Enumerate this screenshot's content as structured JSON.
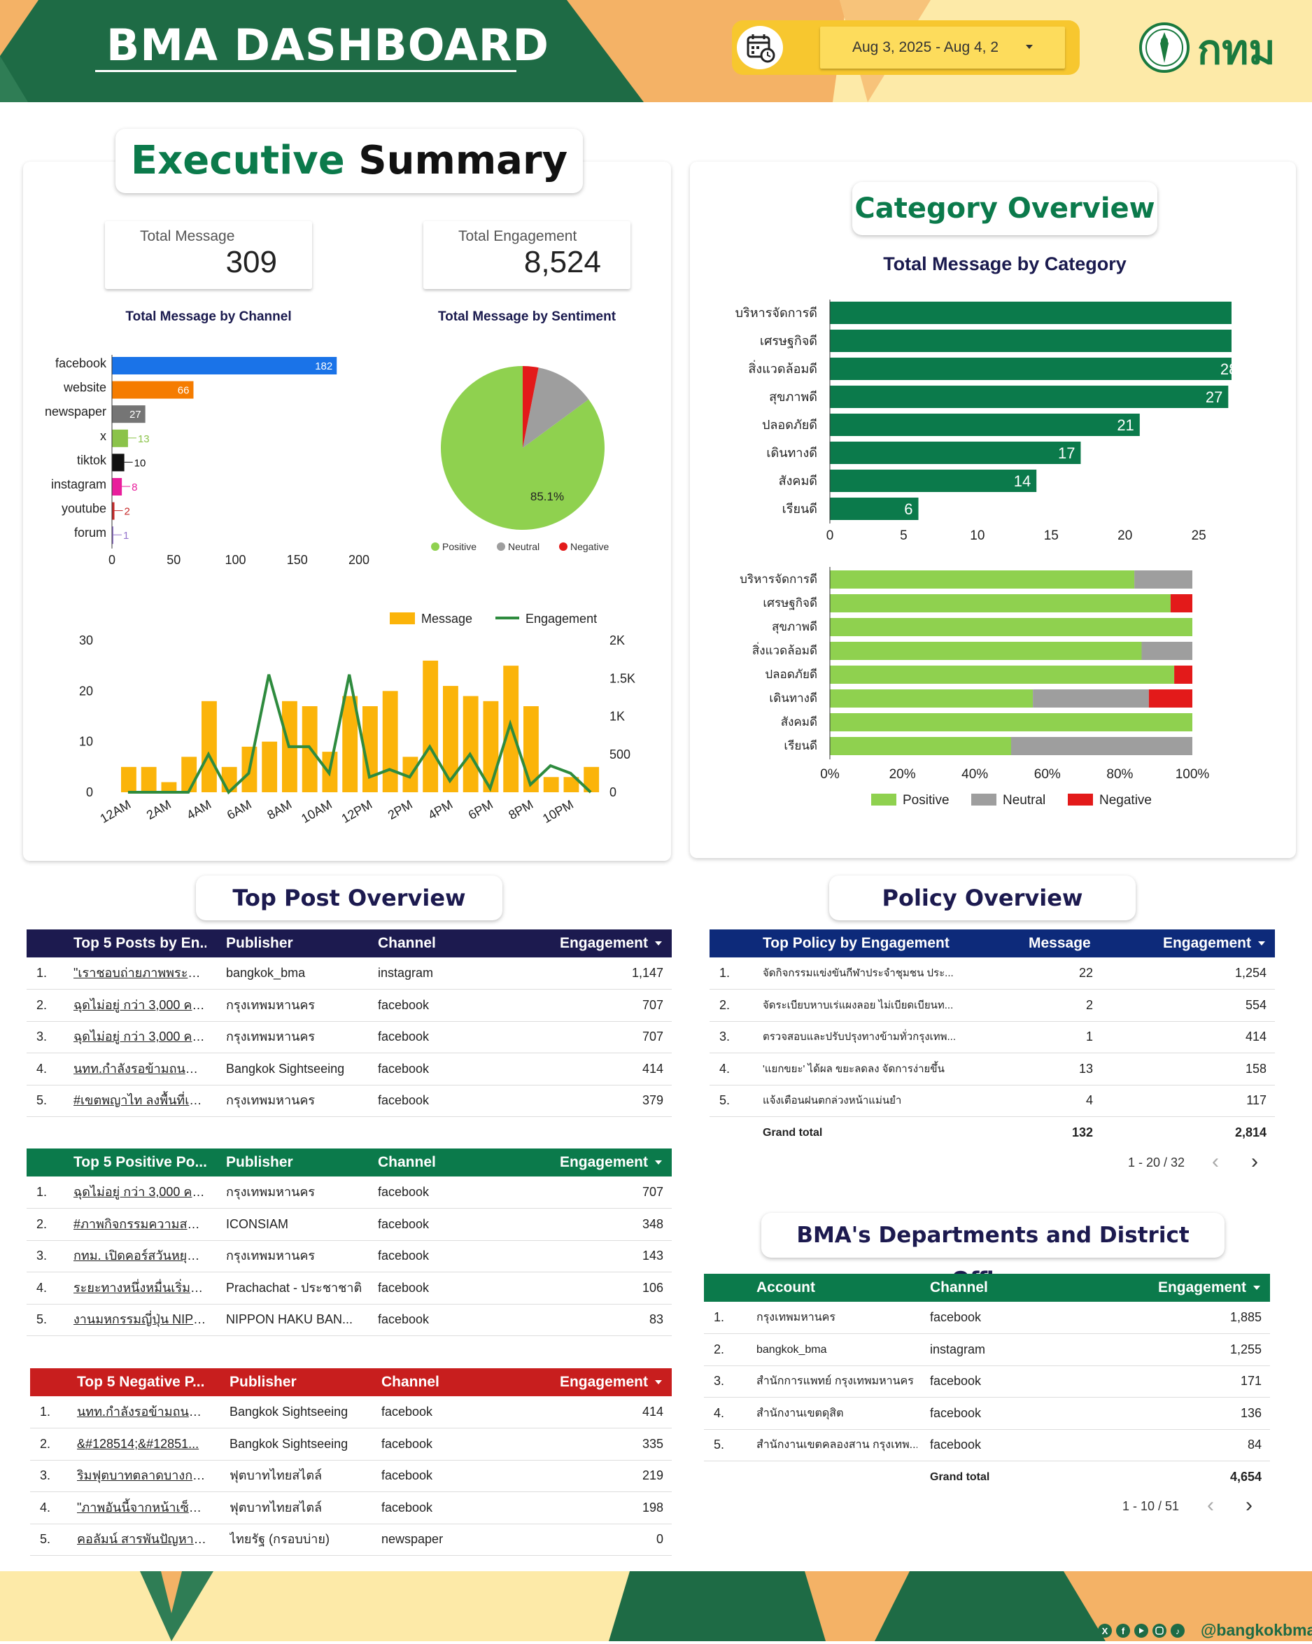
{
  "header": {
    "title": "BMA DASHBOARD",
    "date_range": "Aug 3, 2025 - Aug 4, 2",
    "logo_text": "กทม",
    "calendar_icon": "calendar-clock-icon",
    "dropdown_icon": "caret-down-icon"
  },
  "colors": {
    "dark_green": "#1e6b45",
    "brand_green": "#0b7a4b",
    "orange": "#f4b266",
    "yellow": "#f7c72f",
    "navy": "#1c1a4f",
    "red": "#c81e1e",
    "positive": "#8fd14f",
    "neutral": "#9e9e9e",
    "negative": "#e31a1a"
  },
  "executive": {
    "title_part1": "Executive",
    "title_part2": "Summary",
    "total_message_label": "Total Message",
    "total_message_value": "309",
    "total_engagement_label": "Total Engagement",
    "total_engagement_value": "8,524",
    "channel_title": "Total Message by Channel",
    "sentiment_title": "Total Message by Sentiment"
  },
  "category": {
    "title": "Category Overview",
    "chart_title": "Total Message by Category"
  },
  "top_post": {
    "title": "Top Post Overview",
    "engagement_table": {
      "headers": [
        "Top 5 Posts by En...",
        "Publisher",
        "Channel",
        "Engagement"
      ],
      "rows": [
        {
          "n": "1.",
          "post": "\"เราชอบถ่ายภาพพระราชินี...",
          "publisher": "bangkok_bma",
          "channel": "instagram",
          "engagement": "1,147"
        },
        {
          "n": "2.",
          "post": "ฉุดไม่อยู่ กว่า 3,000 คน ...",
          "publisher": "กรุงเทพมหานคร",
          "channel": "facebook",
          "engagement": "707"
        },
        {
          "n": "3.",
          "post": "ฉุดไม่อยู่ กว่า 3,000 คน ...",
          "publisher": "กรุงเทพมหานคร",
          "channel": "facebook",
          "engagement": "707"
        },
        {
          "n": "4.",
          "post": "นทท.กำลังรอข้ามถนนจนลั...",
          "publisher": "Bangkok Sightseeing",
          "channel": "facebook",
          "engagement": "414"
        },
        {
          "n": "5.",
          "post": "#เขตพญาไท ลงพื้นที่เก็บก...",
          "publisher": "กรุงเทพมหานคร",
          "channel": "facebook",
          "engagement": "379"
        }
      ]
    },
    "positive_table": {
      "headers": [
        "Top 5 Positive Po...",
        "Publisher",
        "Channel",
        "Engagement"
      ],
      "rows": [
        {
          "n": "1.",
          "post": "ฉุดไม่อยู่ กว่า 3,000 คน ...",
          "publisher": "กรุงเทพมหานคร",
          "channel": "facebook",
          "engagement": "707"
        },
        {
          "n": "2.",
          "post": "#ภาพกิจกรรมความสนุกเห็...",
          "publisher": "ICONSIAM",
          "channel": "facebook",
          "engagement": "348"
        },
        {
          "n": "3.",
          "post": "กทม. เปิดคอร์สวันหยุด ติว...",
          "publisher": "กรุงเทพมหานคร",
          "channel": "facebook",
          "engagement": "143"
        },
        {
          "n": "4.",
          "post": "ระยะทางหนึ่งหมื่นเริ่มต้นที่ก้...",
          "publisher": "Prachachat - ประชาชาติ",
          "channel": "facebook",
          "engagement": "106"
        },
        {
          "n": "5.",
          "post": "งานมหกรรมญี่ปุ่น NIPP...",
          "publisher": "NIPPON HAKU BAN...",
          "channel": "facebook",
          "engagement": "83"
        }
      ]
    },
    "negative_table": {
      "headers": [
        "Top 5 Negative P...",
        "Publisher",
        "Channel",
        "Engagement"
      ],
      "rows": [
        {
          "n": "1.",
          "post": "นทท.กำลังรอข้ามถนนจนลั...",
          "publisher": "Bangkok Sightseeing",
          "channel": "facebook",
          "engagement": "414"
        },
        {
          "n": "2.",
          "post": "&#128514;&#12851...",
          "publisher": "Bangkok Sightseeing",
          "channel": "facebook",
          "engagement": "335"
        },
        {
          "n": "3.",
          "post": "ริมฟุตบาทตลาดบางกะปิ ล...",
          "publisher": "ฟุตบาทไทยสไตล์",
          "channel": "facebook",
          "engagement": "219"
        },
        {
          "n": "4.",
          "post": "\"ภาพอันนี้จากหน้าเซ็นทรัล...",
          "publisher": "ฟุตบาทไทยสไตล์",
          "channel": "facebook",
          "engagement": "198"
        },
        {
          "n": "5.",
          "post": "คอลัมน์ สารพันปัญหาสาระ...",
          "publisher": "ไทยรัฐ (กรอบบ่าย)",
          "channel": "newspaper",
          "engagement": "0"
        }
      ]
    }
  },
  "policy": {
    "title": "Policy Overview",
    "headers": [
      "Top Policy by Engagement",
      "Message",
      "Engagement"
    ],
    "rows": [
      {
        "n": "1.",
        "policy": "จัดกิจกรรมแข่งขันกีฬาประจำชุมชน ประ...",
        "message": "22",
        "engagement": "1,254"
      },
      {
        "n": "2.",
        "policy": "จัดระเบียบหาบเร่แผงลอย ไม่เบียดเบียนท...",
        "message": "2",
        "engagement": "554"
      },
      {
        "n": "3.",
        "policy": "ตรวจสอบและปรับปรุงทางข้ามทั่วกรุงเทพ...",
        "message": "1",
        "engagement": "414"
      },
      {
        "n": "4.",
        "policy": "'แยกขยะ' ได้ผล ขยะลดลง จัดการง่ายขึ้น",
        "message": "13",
        "engagement": "158"
      },
      {
        "n": "5.",
        "policy": "แจ้งเตือนฝนตกล่วงหน้าแม่นยำ",
        "message": "4",
        "engagement": "117"
      }
    ],
    "grand_total_label": "Grand total",
    "grand_total_message": "132",
    "grand_total_engagement": "2,814",
    "pager": "1 - 20 / 32"
  },
  "departments": {
    "title": "BMA's Departments and District Offices",
    "headers": [
      "Account",
      "Channel",
      "Engagement"
    ],
    "rows": [
      {
        "n": "1.",
        "account": "กรุงเทพมหานคร",
        "channel": "facebook",
        "engagement": "1,885"
      },
      {
        "n": "2.",
        "account": "bangkok_bma",
        "channel": "instagram",
        "engagement": "1,255"
      },
      {
        "n": "3.",
        "account": "สำนักการแพทย์ กรุงเทพมหานคร",
        "channel": "facebook",
        "engagement": "171"
      },
      {
        "n": "4.",
        "account": "สำนักงานเขตดุสิต",
        "channel": "facebook",
        "engagement": "136"
      },
      {
        "n": "5.",
        "account": "สำนักงานเขตคลองสาน กรุงเทพ...",
        "channel": "facebook",
        "engagement": "84"
      }
    ],
    "grand_total_label": "Grand total",
    "grand_total_engagement": "4,654",
    "pager": "1 - 10 / 51"
  },
  "footer": {
    "handle": "@bangkokbma",
    "icons": [
      "x-icon",
      "facebook-icon",
      "youtube-icon",
      "instagram-icon",
      "tiktok-icon"
    ]
  },
  "chart_data": [
    {
      "id": "channel",
      "type": "bar",
      "orientation": "horizontal",
      "title": "Total Message by Channel",
      "categories": [
        "facebook",
        "website",
        "newspaper",
        "x",
        "tiktok",
        "instagram",
        "youtube",
        "forum"
      ],
      "values": [
        182,
        66,
        27,
        13,
        10,
        8,
        2,
        1
      ],
      "colors": [
        "#1a73e8",
        "#f57c00",
        "#757575",
        "#8bc34a",
        "#111111",
        "#e91e9c",
        "#c62828",
        "#9575cd"
      ],
      "xlim": [
        0,
        200
      ],
      "xticks": [
        "0",
        "50",
        "100",
        "150",
        "200"
      ]
    },
    {
      "id": "sentiment",
      "type": "pie",
      "title": "Total Message by Sentiment",
      "labels": [
        "Positive",
        "Neutral",
        "Negative"
      ],
      "values": [
        85.1,
        11.8,
        3.1
      ],
      "colors": [
        "#8fd14f",
        "#9e9e9e",
        "#e31a1a"
      ],
      "data_label": "85.1%",
      "legend": "bottom"
    },
    {
      "id": "hourly",
      "type": "bar",
      "combo": "bar+line",
      "x": [
        "12AM",
        "1AM",
        "2AM",
        "3AM",
        "4AM",
        "5AM",
        "6AM",
        "7AM",
        "8AM",
        "9AM",
        "10AM",
        "11AM",
        "12PM",
        "1PM",
        "2PM",
        "3PM",
        "4PM",
        "5PM",
        "6PM",
        "7PM",
        "8PM",
        "9PM",
        "10PM",
        "11PM"
      ],
      "xtick_labels": [
        "12AM",
        "2AM",
        "4AM",
        "6AM",
        "8AM",
        "10AM",
        "12PM",
        "2PM",
        "4PM",
        "6PM",
        "8PM",
        "10PM"
      ],
      "series": [
        {
          "name": "Message",
          "type": "bar",
          "color": "#fbb40a",
          "axis": "left",
          "values": [
            5,
            5,
            2,
            7,
            18,
            5,
            9,
            10,
            18,
            17,
            8,
            19,
            17,
            20,
            7,
            26,
            21,
            19,
            18,
            25,
            17,
            3,
            3,
            5
          ]
        },
        {
          "name": "Engagement",
          "type": "line",
          "color": "#2e8b3e",
          "axis": "right",
          "values": [
            0,
            0,
            0,
            0,
            500,
            0,
            250,
            1550,
            600,
            600,
            250,
            1550,
            200,
            300,
            200,
            600,
            150,
            500,
            50,
            900,
            100,
            350,
            250,
            0
          ]
        }
      ],
      "ylim_left": [
        0,
        30
      ],
      "yticks_left": [
        "0",
        "10",
        "20",
        "30"
      ],
      "ylim_right": [
        0,
        2000
      ],
      "yticks_right": [
        "0",
        "500",
        "1K",
        "1.5K",
        "2K"
      ],
      "legend": "top-right"
    },
    {
      "id": "category",
      "type": "bar",
      "orientation": "horizontal",
      "title": "Total Message by Category",
      "categories": [
        "บริหารจัดการดี",
        "เศรษฐกิจดี",
        "สิ่งแวดล้อมดี",
        "สุขภาพดี",
        "ปลอดภัยดี",
        "เดินทางดี",
        "สังคมดี",
        "เรียนดี"
      ],
      "values": [
        31,
        30,
        28,
        27,
        21,
        17,
        14,
        6
      ],
      "color": "#0b7a4b",
      "xlim": [
        0,
        35
      ],
      "xticks": [
        "0",
        "5",
        "10",
        "15",
        "20",
        "25",
        "30",
        "35"
      ]
    },
    {
      "id": "category_sentiment",
      "type": "bar",
      "stacked": "percent",
      "orientation": "horizontal",
      "categories": [
        "บริหารจัดการดี",
        "เศรษฐกิจดี",
        "สุขภาพดี",
        "สิ่งแวดล้อมดี",
        "ปลอดภัยดี",
        "เดินทางดี",
        "สังคมดี",
        "เรียนดี"
      ],
      "series": [
        {
          "name": "Positive",
          "color": "#8fd14f",
          "values": [
            84,
            94,
            100,
            86,
            95,
            56,
            100,
            50
          ]
        },
        {
          "name": "Neutral",
          "color": "#9e9e9e",
          "values": [
            16,
            0,
            0,
            14,
            0,
            32,
            0,
            50
          ]
        },
        {
          "name": "Negative",
          "color": "#e31a1a",
          "values": [
            0,
            6,
            0,
            0,
            5,
            12,
            0,
            0
          ]
        }
      ],
      "xticks": [
        "0%",
        "20%",
        "40%",
        "60%",
        "80%",
        "100%"
      ],
      "legend": "bottom"
    }
  ]
}
